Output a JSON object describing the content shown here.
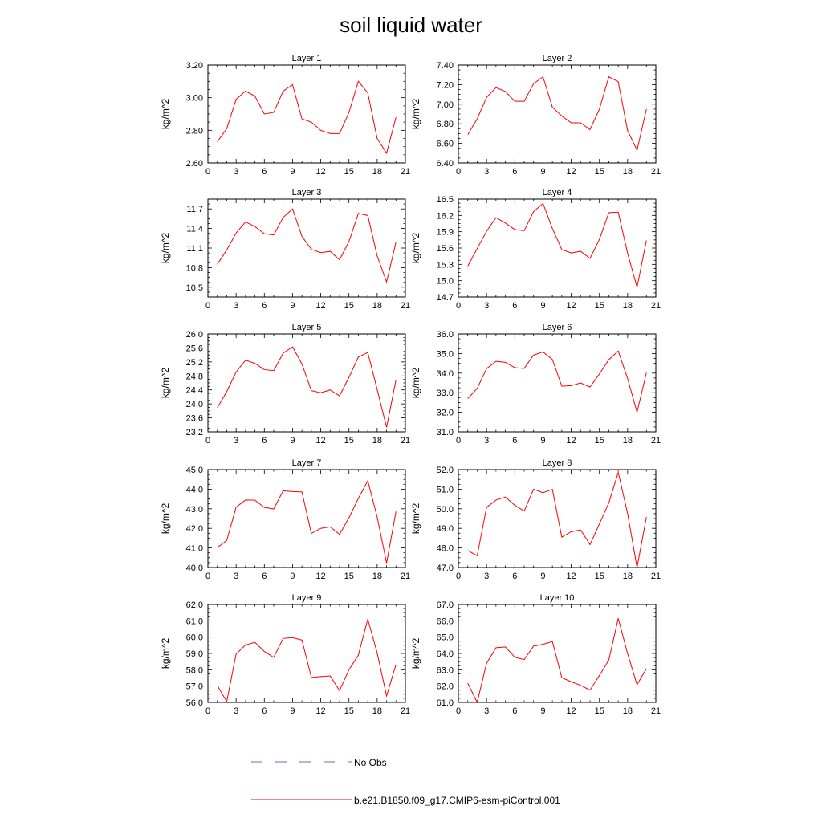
{
  "title": "soil liquid water",
  "legend": {
    "obs_label": "No Obs",
    "obs_color": "#6a6ad8",
    "model_label": "b.e21.B1850.f09_g17.CMIP6-esm-piControl.001",
    "model_color": "#ff0000"
  },
  "chart_data": [
    {
      "type": "line",
      "title": "Layer 1",
      "ylabel": "kg/m^2",
      "xlim": [
        0,
        21
      ],
      "xticks": [
        0,
        3,
        6,
        9,
        12,
        15,
        18,
        21
      ],
      "ylim": [
        2.6,
        3.2
      ],
      "yticks": [
        2.6,
        2.8,
        3.0,
        3.2
      ],
      "ytick_labels": [
        "2.60",
        "2.80",
        "3.00",
        "3.20"
      ],
      "x": [
        1,
        2,
        3,
        4,
        5,
        6,
        7,
        8,
        9,
        10,
        11,
        12,
        13,
        14,
        15,
        16,
        17,
        18,
        19,
        20
      ],
      "series": [
        {
          "name": "b.e21.B1850.f09_g17.CMIP6-esm-piControl.001",
          "values": [
            2.73,
            2.81,
            2.99,
            3.04,
            3.01,
            2.9,
            2.91,
            3.04,
            3.08,
            2.87,
            2.85,
            2.8,
            2.78,
            2.78,
            2.91,
            3.1,
            3.03,
            2.75,
            2.66,
            2.88
          ]
        }
      ]
    },
    {
      "type": "line",
      "title": "Layer 2",
      "ylabel": "kg/m^2",
      "xlim": [
        0,
        21
      ],
      "xticks": [
        0,
        3,
        6,
        9,
        12,
        15,
        18,
        21
      ],
      "ylim": [
        6.4,
        7.4
      ],
      "yticks": [
        6.4,
        6.6,
        6.8,
        7.0,
        7.2,
        7.4
      ],
      "ytick_labels": [
        "6.40",
        "6.60",
        "6.80",
        "7.00",
        "7.20",
        "7.40"
      ],
      "x": [
        1,
        2,
        3,
        4,
        5,
        6,
        7,
        8,
        9,
        10,
        11,
        12,
        13,
        14,
        15,
        16,
        17,
        18,
        19,
        20
      ],
      "series": [
        {
          "name": "b.e21.B1850.f09_g17.CMIP6-esm-piControl.001",
          "values": [
            6.69,
            6.85,
            7.07,
            7.17,
            7.13,
            7.03,
            7.03,
            7.21,
            7.28,
            6.97,
            6.88,
            6.81,
            6.81,
            6.74,
            6.95,
            7.28,
            7.23,
            6.73,
            6.53,
            6.95
          ]
        }
      ]
    },
    {
      "type": "line",
      "title": "Layer 3",
      "ylabel": "kg/m^2",
      "xlim": [
        0,
        21
      ],
      "xticks": [
        0,
        3,
        6,
        9,
        12,
        15,
        18,
        21
      ],
      "ylim": [
        10.35,
        11.85
      ],
      "yticks": [
        10.5,
        10.8,
        11.1,
        11.4,
        11.7
      ],
      "ytick_labels": [
        "10.5",
        "10.8",
        "11.1",
        "11.4",
        "11.7"
      ],
      "x": [
        1,
        2,
        3,
        4,
        5,
        6,
        7,
        8,
        9,
        10,
        11,
        12,
        13,
        14,
        15,
        16,
        17,
        18,
        19,
        20
      ],
      "series": [
        {
          "name": "b.e21.B1850.f09_g17.CMIP6-esm-piControl.001",
          "values": [
            10.85,
            11.07,
            11.33,
            11.5,
            11.43,
            11.32,
            11.3,
            11.57,
            11.7,
            11.28,
            11.08,
            11.03,
            11.05,
            10.92,
            11.2,
            11.63,
            11.6,
            10.98,
            10.58,
            11.19
          ]
        }
      ]
    },
    {
      "type": "line",
      "title": "Layer 4",
      "ylabel": "kg/m^2",
      "xlim": [
        0,
        21
      ],
      "xticks": [
        0,
        3,
        6,
        9,
        12,
        15,
        18,
        21
      ],
      "ylim": [
        14.7,
        16.5
      ],
      "yticks": [
        14.7,
        15.0,
        15.3,
        15.6,
        15.9,
        16.2,
        16.5
      ],
      "ytick_labels": [
        "14.7",
        "15.0",
        "15.3",
        "15.6",
        "15.9",
        "16.2",
        "16.5"
      ],
      "x": [
        1,
        2,
        3,
        4,
        5,
        6,
        7,
        8,
        9,
        10,
        11,
        12,
        13,
        14,
        15,
        16,
        17,
        18,
        19,
        20
      ],
      "series": [
        {
          "name": "b.e21.B1850.f09_g17.CMIP6-esm-piControl.001",
          "values": [
            15.27,
            15.59,
            15.91,
            16.16,
            16.06,
            15.94,
            15.92,
            16.27,
            16.42,
            15.96,
            15.57,
            15.51,
            15.54,
            15.41,
            15.76,
            16.25,
            16.26,
            15.5,
            14.88,
            15.74
          ]
        }
      ]
    },
    {
      "type": "line",
      "title": "Layer 5",
      "ylabel": "kg/m^2",
      "xlim": [
        0,
        21
      ],
      "xticks": [
        0,
        3,
        6,
        9,
        12,
        15,
        18,
        21
      ],
      "ylim": [
        23.2,
        26.0
      ],
      "yticks": [
        23.2,
        23.6,
        24.0,
        24.4,
        24.8,
        25.2,
        25.6,
        26.0
      ],
      "ytick_labels": [
        "23.2",
        "23.6",
        "24.0",
        "24.4",
        "24.8",
        "25.2",
        "25.6",
        "26.0"
      ],
      "x": [
        1,
        2,
        3,
        4,
        5,
        6,
        7,
        8,
        9,
        10,
        11,
        12,
        13,
        14,
        15,
        16,
        17,
        18,
        19,
        20
      ],
      "series": [
        {
          "name": "b.e21.B1850.f09_g17.CMIP6-esm-piControl.001",
          "values": [
            23.89,
            24.35,
            24.91,
            25.25,
            25.16,
            24.98,
            24.95,
            25.45,
            25.63,
            25.14,
            24.38,
            24.32,
            24.4,
            24.23,
            24.76,
            25.34,
            25.47,
            24.41,
            23.33,
            24.69
          ]
        }
      ]
    },
    {
      "type": "line",
      "title": "Layer 6",
      "ylabel": "kg/m^2",
      "xlim": [
        0,
        21
      ],
      "xticks": [
        0,
        3,
        6,
        9,
        12,
        15,
        18,
        21
      ],
      "ylim": [
        31.0,
        36.0
      ],
      "yticks": [
        31.0,
        32.0,
        33.0,
        34.0,
        35.0,
        36.0
      ],
      "ytick_labels": [
        "31.0",
        "32.0",
        "33.0",
        "34.0",
        "35.0",
        "36.0"
      ],
      "x": [
        1,
        2,
        3,
        4,
        5,
        6,
        7,
        8,
        9,
        10,
        11,
        12,
        13,
        14,
        15,
        16,
        17,
        18,
        19,
        20
      ],
      "series": [
        {
          "name": "b.e21.B1850.f09_g17.CMIP6-esm-piControl.001",
          "values": [
            32.7,
            33.22,
            34.23,
            34.6,
            34.55,
            34.28,
            34.24,
            34.92,
            35.08,
            34.7,
            33.33,
            33.36,
            33.5,
            33.29,
            33.96,
            34.69,
            35.13,
            33.72,
            32.0,
            34.02
          ]
        }
      ]
    },
    {
      "type": "line",
      "title": "Layer 7",
      "ylabel": "kg/m^2",
      "xlim": [
        0,
        21
      ],
      "xticks": [
        0,
        3,
        6,
        9,
        12,
        15,
        18,
        21
      ],
      "ylim": [
        40.0,
        45.0
      ],
      "yticks": [
        40.0,
        41.0,
        42.0,
        43.0,
        44.0,
        45.0
      ],
      "ytick_labels": [
        "40.0",
        "41.0",
        "42.0",
        "43.0",
        "44.0",
        "45.0"
      ],
      "x": [
        1,
        2,
        3,
        4,
        5,
        6,
        7,
        8,
        9,
        10,
        11,
        12,
        13,
        14,
        15,
        16,
        17,
        18,
        19,
        20
      ],
      "series": [
        {
          "name": "b.e21.B1850.f09_g17.CMIP6-esm-piControl.001",
          "values": [
            41.02,
            41.38,
            43.08,
            43.45,
            43.44,
            43.07,
            42.99,
            43.92,
            43.88,
            43.86,
            41.74,
            42.0,
            42.08,
            41.69,
            42.54,
            43.53,
            44.43,
            42.58,
            40.23,
            42.86
          ]
        }
      ]
    },
    {
      "type": "line",
      "title": "Layer 8",
      "ylabel": "kg/m^2",
      "xlim": [
        0,
        21
      ],
      "xticks": [
        0,
        3,
        6,
        9,
        12,
        15,
        18,
        21
      ],
      "ylim": [
        47.0,
        52.0
      ],
      "yticks": [
        47.0,
        48.0,
        49.0,
        50.0,
        51.0,
        52.0
      ],
      "ytick_labels": [
        "47.0",
        "48.0",
        "49.0",
        "50.0",
        "51.0",
        "52.0"
      ],
      "x": [
        1,
        2,
        3,
        4,
        5,
        6,
        7,
        8,
        9,
        10,
        11,
        12,
        13,
        14,
        15,
        16,
        17,
        18,
        19,
        20
      ],
      "series": [
        {
          "name": "b.e21.B1850.f09_g17.CMIP6-esm-piControl.001",
          "values": [
            47.87,
            47.6,
            50.07,
            50.44,
            50.6,
            50.18,
            49.88,
            51.0,
            50.82,
            50.99,
            48.55,
            48.83,
            48.92,
            48.17,
            49.23,
            50.3,
            51.86,
            49.75,
            47.0,
            49.58
          ]
        }
      ]
    },
    {
      "type": "line",
      "title": "Layer 9",
      "ylabel": "kg/m^2",
      "xlim": [
        0,
        21
      ],
      "xticks": [
        0,
        3,
        6,
        9,
        12,
        15,
        18,
        21
      ],
      "ylim": [
        56.0,
        62.0
      ],
      "yticks": [
        56.0,
        57.0,
        58.0,
        59.0,
        60.0,
        61.0,
        62.0
      ],
      "ytick_labels": [
        "56.0",
        "57.0",
        "58.0",
        "59.0",
        "60.0",
        "61.0",
        "62.0"
      ],
      "x": [
        1,
        2,
        3,
        4,
        5,
        6,
        7,
        8,
        9,
        10,
        11,
        12,
        13,
        14,
        15,
        16,
        17,
        18,
        19,
        20
      ],
      "series": [
        {
          "name": "b.e21.B1850.f09_g17.CMIP6-esm-piControl.001",
          "values": [
            57.04,
            56.05,
            58.96,
            59.52,
            59.68,
            59.12,
            58.76,
            59.92,
            59.97,
            59.82,
            57.53,
            57.58,
            57.62,
            56.73,
            58.0,
            58.9,
            61.1,
            59.03,
            56.4,
            58.32
          ]
        }
      ]
    },
    {
      "type": "line",
      "title": "Layer 10",
      "ylabel": "kg/m^2",
      "xlim": [
        0,
        21
      ],
      "xticks": [
        0,
        3,
        6,
        9,
        12,
        15,
        18,
        21
      ],
      "ylim": [
        61.0,
        67.0
      ],
      "yticks": [
        61.0,
        62.0,
        63.0,
        64.0,
        65.0,
        66.0,
        67.0
      ],
      "ytick_labels": [
        "61.0",
        "62.0",
        "63.0",
        "64.0",
        "65.0",
        "66.0",
        "67.0"
      ],
      "x": [
        1,
        2,
        3,
        4,
        5,
        6,
        7,
        8,
        9,
        10,
        11,
        12,
        13,
        14,
        15,
        16,
        17,
        18,
        19,
        20
      ],
      "series": [
        {
          "name": "b.e21.B1850.f09_g17.CMIP6-esm-piControl.001",
          "values": [
            62.18,
            61.0,
            63.4,
            64.35,
            64.4,
            63.77,
            63.62,
            64.45,
            64.56,
            64.73,
            62.52,
            62.26,
            62.05,
            61.75,
            62.65,
            63.6,
            66.15,
            63.98,
            62.08,
            63.07
          ]
        }
      ]
    }
  ]
}
